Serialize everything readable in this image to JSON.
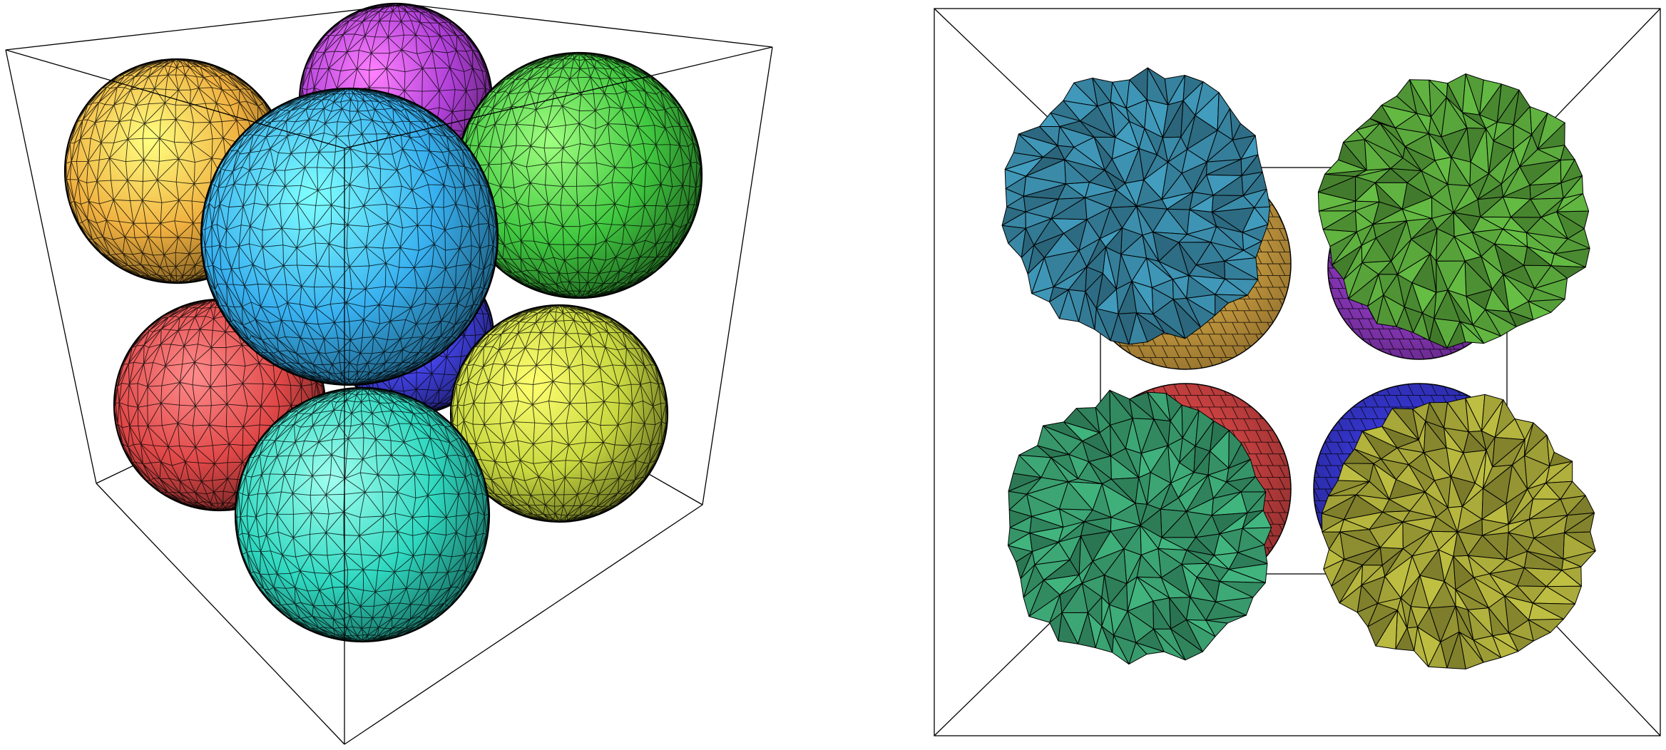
{
  "left_view": {
    "spheres": [
      {
        "name": "orange",
        "color": "#f0b040",
        "highlight": "#ffff80"
      },
      {
        "name": "purple",
        "color": "#b040d8",
        "highlight": "#ff80ff"
      },
      {
        "name": "green",
        "color": "#40c840",
        "highlight": "#a0ff80"
      },
      {
        "name": "red",
        "color": "#e04848",
        "highlight": "#ff8c8c"
      },
      {
        "name": "blue",
        "color": "#4040e0",
        "highlight": "#8c8cff"
      },
      {
        "name": "yellow",
        "color": "#c8d840",
        "highlight": "#ffff70"
      },
      {
        "name": "teal",
        "color": "#30d8c0",
        "highlight": "#a0fff0"
      },
      {
        "name": "cyan",
        "color": "#38b0f0",
        "highlight": "#80ffff"
      }
    ]
  },
  "right_view": {
    "spheres": [
      {
        "name": "orange",
        "color": "#e8b048"
      },
      {
        "name": "purple",
        "color": "#a040d8"
      },
      {
        "name": "red",
        "color": "#e04848"
      },
      {
        "name": "blue",
        "color": "#3838d8"
      },
      {
        "name": "steel-blue",
        "color": "#3a8aa8"
      },
      {
        "name": "olive-green",
        "color": "#5aa83c"
      },
      {
        "name": "sea-green",
        "color": "#3aa070"
      },
      {
        "name": "olive",
        "color": "#a8a83a"
      }
    ]
  }
}
